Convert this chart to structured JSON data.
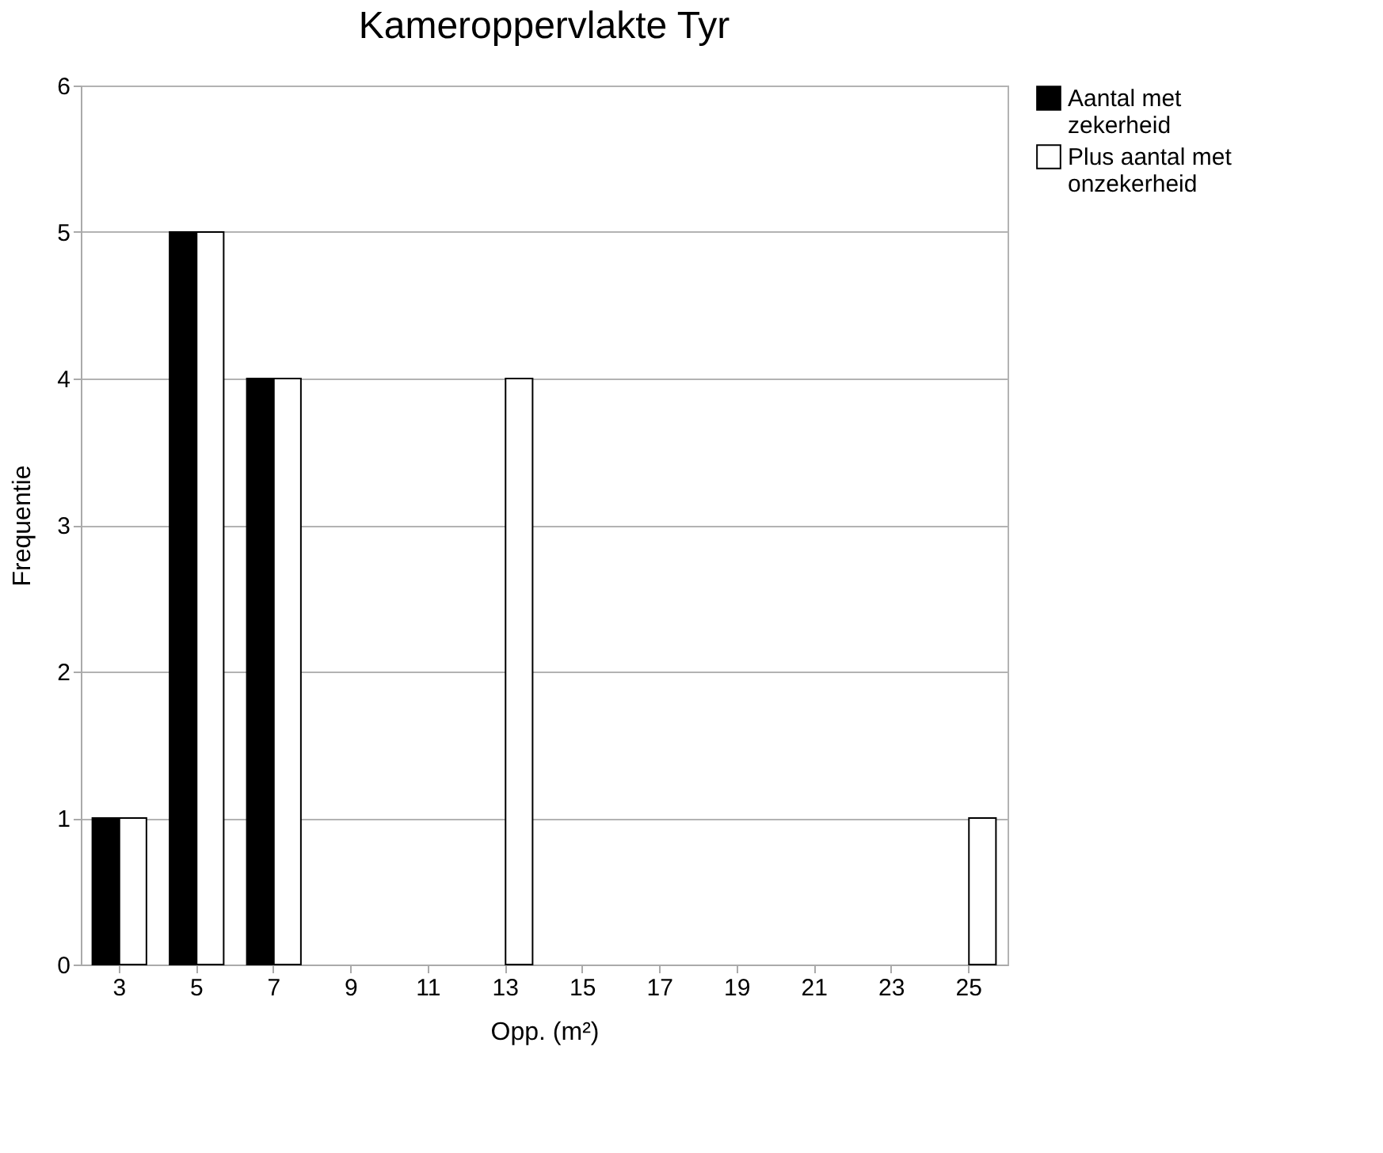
{
  "chart_data": {
    "type": "bar",
    "title": "Kameroppervlakte Tyr",
    "xlabel": "Opp. (m²)",
    "ylabel": "Frequentie",
    "categories": [
      "3",
      "5",
      "7",
      "9",
      "11",
      "13",
      "15",
      "17",
      "19",
      "21",
      "23",
      "25"
    ],
    "series": [
      {
        "name": "Aantal met zekerheid",
        "color": "#000000",
        "values": [
          1,
          5,
          4,
          0,
          0,
          0,
          0,
          0,
          0,
          0,
          0,
          0
        ]
      },
      {
        "name": "Plus aantal met onzekerheid",
        "color": "#ffffff",
        "values": [
          1,
          5,
          4,
          0,
          0,
          4,
          0,
          0,
          0,
          0,
          0,
          1
        ]
      }
    ],
    "ylim": [
      0,
      6
    ],
    "yticks": [
      0,
      1,
      2,
      3,
      4,
      5,
      6
    ],
    "grid": "y",
    "legend": "right"
  }
}
